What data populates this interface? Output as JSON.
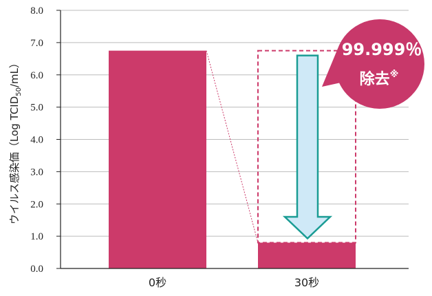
{
  "chart_data": {
    "type": "bar",
    "categories": [
      "0秒",
      "30秒"
    ],
    "values": [
      6.75,
      0.8
    ],
    "ylabel": "ウイルス感染価（Log TCID50/mL）",
    "ylabel_prefix": "ウイルス感染価（Log TCID",
    "ylabel_sub": "50",
    "ylabel_suffix": "/mL）",
    "ylim": [
      0,
      8
    ],
    "yticks": [
      "0.0",
      "1.0",
      "2.0",
      "3.0",
      "4.0",
      "5.0",
      "6.0",
      "7.0",
      "8.0"
    ],
    "grid": true,
    "annotation": {
      "line1": "99.999％",
      "line2": "除去",
      "mark": "※"
    }
  },
  "colors": {
    "bar": "#cc3a6a",
    "arrow_fill": "#cfe9f7",
    "arrow_stroke": "#1a9c94",
    "grid": "#bbbbbb",
    "callout": "#c8386a"
  }
}
